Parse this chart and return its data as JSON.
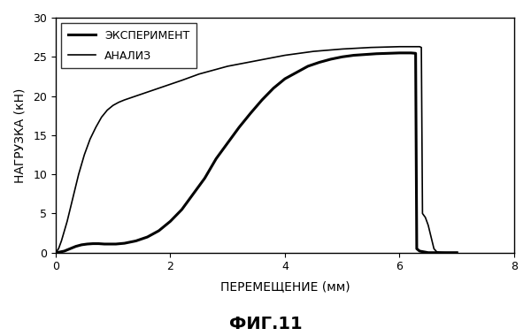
{
  "title": "ФИГ.11",
  "xlabel": "ПЕРЕМЕЩЕНИЕ (мм)",
  "ylabel": "НАГРУЗКА (кН)",
  "xlim": [
    0,
    8
  ],
  "ylim": [
    0,
    30
  ],
  "xticks": [
    0,
    2,
    4,
    6,
    8
  ],
  "yticks": [
    0,
    5,
    10,
    15,
    20,
    25,
    30
  ],
  "legend_experiment": "ЭКСПЕРИМЕНТ",
  "legend_analysis": "АНАЛИЗ",
  "background_color": "#ffffff",
  "line_color": "#000000",
  "experiment_x": [
    0,
    0.05,
    0.15,
    0.25,
    0.35,
    0.45,
    0.55,
    0.65,
    0.75,
    0.85,
    0.95,
    1.05,
    1.2,
    1.4,
    1.6,
    1.8,
    2.0,
    2.2,
    2.4,
    2.6,
    2.8,
    3.0,
    3.2,
    3.4,
    3.6,
    3.8,
    4.0,
    4.2,
    4.4,
    4.6,
    4.8,
    5.0,
    5.2,
    5.4,
    5.6,
    5.8,
    6.0,
    6.1,
    6.2,
    6.28,
    6.3,
    6.35,
    6.5,
    6.6,
    6.7,
    7.0
  ],
  "experiment_y": [
    0,
    0.05,
    0.2,
    0.5,
    0.8,
    1.0,
    1.1,
    1.15,
    1.15,
    1.1,
    1.1,
    1.1,
    1.2,
    1.5,
    2.0,
    2.8,
    4.0,
    5.5,
    7.5,
    9.5,
    12.0,
    14.0,
    16.0,
    17.8,
    19.5,
    21.0,
    22.2,
    23.0,
    23.8,
    24.3,
    24.7,
    25.0,
    25.2,
    25.3,
    25.4,
    25.45,
    25.5,
    25.5,
    25.5,
    25.45,
    0.5,
    0.2,
    0.0,
    0.0,
    0.0,
    0.0
  ],
  "analysis_x": [
    0,
    0.05,
    0.1,
    0.2,
    0.3,
    0.4,
    0.5,
    0.6,
    0.7,
    0.8,
    0.9,
    1.0,
    1.1,
    1.2,
    1.4,
    1.6,
    1.8,
    2.0,
    2.2,
    2.5,
    3.0,
    3.5,
    4.0,
    4.5,
    5.0,
    5.5,
    6.0,
    6.1,
    6.2,
    6.3,
    6.35,
    6.38,
    6.4,
    6.42,
    6.45,
    6.5,
    6.55,
    6.6,
    6.65,
    6.7,
    6.75,
    6.8,
    7.0
  ],
  "analysis_y": [
    0,
    0.5,
    1.5,
    4.0,
    7.0,
    10.0,
    12.5,
    14.5,
    16.0,
    17.3,
    18.2,
    18.8,
    19.2,
    19.5,
    20.0,
    20.5,
    21.0,
    21.5,
    22.0,
    22.8,
    23.8,
    24.5,
    25.2,
    25.7,
    26.0,
    26.2,
    26.3,
    26.3,
    26.3,
    26.3,
    26.3,
    26.2,
    5.0,
    4.8,
    4.5,
    3.5,
    2.0,
    0.5,
    0.1,
    0.05,
    0.02,
    0.0,
    0.0
  ]
}
